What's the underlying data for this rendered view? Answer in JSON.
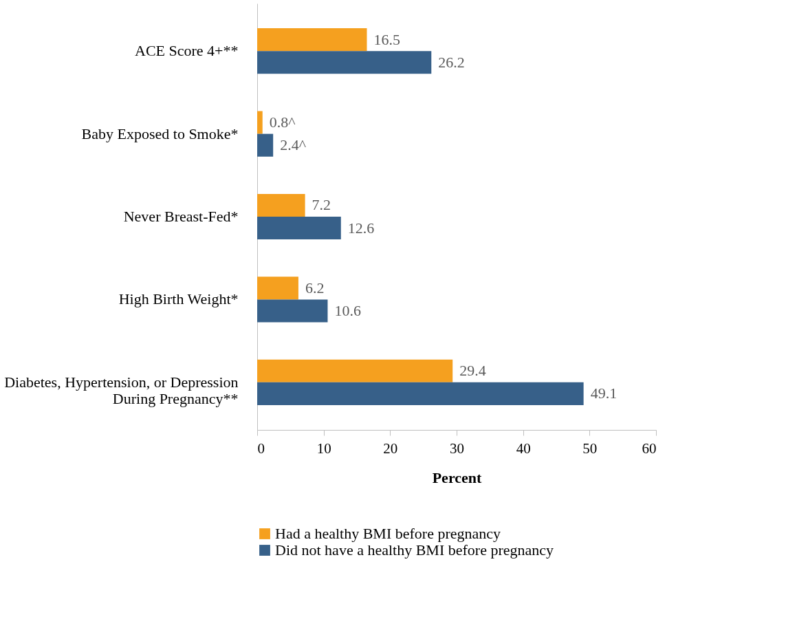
{
  "chart_data": {
    "type": "bar",
    "orientation": "horizontal",
    "xlabel": "Percent",
    "categories": [
      "ACE Score 4+**",
      "Baby Exposed to Smoke*",
      "Never Breast-Fed*",
      "High Birth Weight*",
      "Diabetes, Hypertension, or Depression\nDuring Pregnancy**"
    ],
    "series": [
      {
        "name": "Had a healthy BMI before pregnancy",
        "color": "#f5a01f",
        "values": [
          16.5,
          0.8,
          7.2,
          6.2,
          29.4
        ],
        "value_labels": [
          "16.5",
          "0.8^",
          "7.2",
          "6.2",
          "29.4"
        ]
      },
      {
        "name": "Did not have a healthy BMI before pregnancy",
        "color": "#376089",
        "values": [
          26.2,
          2.4,
          12.6,
          10.6,
          49.1
        ],
        "value_labels": [
          "26.2",
          "2.4^",
          "12.6",
          "10.6",
          "49.1"
        ]
      }
    ],
    "xlim": [
      0,
      60
    ],
    "xticks": [
      0,
      10,
      20,
      30,
      40,
      50,
      60
    ],
    "grid": false,
    "legend": "bottom"
  }
}
